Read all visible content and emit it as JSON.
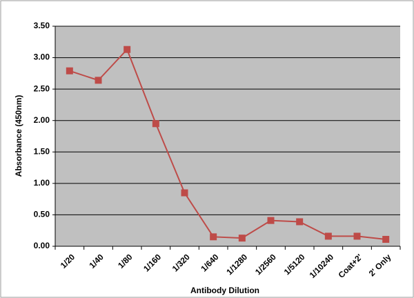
{
  "chart_data": {
    "type": "line",
    "x_label": "Antibody Dilution",
    "y_label": "Absorbance (450nm)",
    "categories": [
      "1/20",
      "1/40",
      "1/80",
      "1/160",
      "1/320",
      "1/640",
      "1/1280",
      "1/2560",
      "1/5120",
      "1/10240",
      "Coat+2'",
      "2' Only"
    ],
    "values": [
      2.79,
      2.64,
      3.13,
      1.95,
      0.85,
      0.15,
      0.13,
      0.41,
      0.39,
      0.16,
      0.16,
      0.11
    ],
    "color": "#be4b48",
    "ylim": [
      0,
      3.5
    ],
    "yticks": [
      {
        "value": 0,
        "label": "0.00"
      },
      {
        "value": 0.5,
        "label": "0.50"
      },
      {
        "value": 1,
        "label": "1.00"
      },
      {
        "value": 1.5,
        "label": "1.50"
      },
      {
        "value": 2,
        "label": "2.00"
      },
      {
        "value": 2.5,
        "label": "2.50"
      },
      {
        "value": 3,
        "label": "3.00"
      },
      {
        "value": 3.5,
        "label": "3.50"
      }
    ],
    "grid": true
  }
}
